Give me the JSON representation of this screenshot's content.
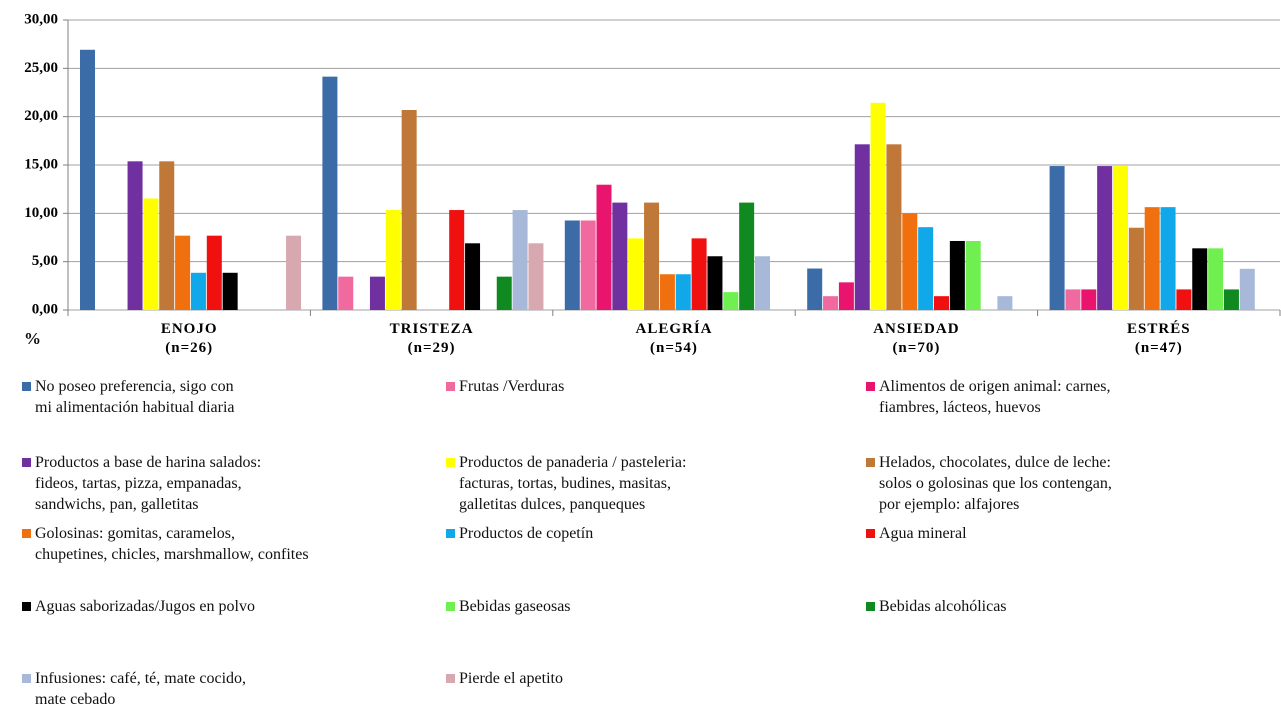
{
  "chart_data": {
    "type": "bar",
    "ylabel": "%",
    "categories": [
      "ENOJO\n(n=26)",
      "TRISTEZA\n(n=29)",
      "ALEGRÍA\n(n=54)",
      "ANSIEDAD\n(n=70)",
      "ESTRÉS\n(n=47)"
    ],
    "ylim": [
      0,
      30
    ],
    "yticks": [
      {
        "value": 0,
        "label": "0,00"
      },
      {
        "value": 5,
        "label": "5,00"
      },
      {
        "value": 10,
        "label": "10,00"
      },
      {
        "value": 15,
        "label": "15,00"
      },
      {
        "value": 20,
        "label": "20,00"
      },
      {
        "value": 25,
        "label": "25,00"
      },
      {
        "value": 30,
        "label": "30,00"
      }
    ],
    "grid": true,
    "series": [
      {
        "name": "No poseo preferencia, sigo con\nmi alimentación habitual diaria",
        "color": "#3c6ca8",
        "values": [
          26.92,
          24.14,
          9.26,
          4.29,
          14.89
        ]
      },
      {
        "name": "Frutas /Verduras",
        "color": "#f06aa0",
        "values": [
          0,
          3.45,
          9.26,
          1.43,
          2.13
        ]
      },
      {
        "name": "Alimentos de origen animal: carnes,\nfiambres, lácteos, huevos",
        "color": "#e8146e",
        "values": [
          0,
          0,
          12.96,
          2.86,
          2.13
        ]
      },
      {
        "name": "Productos a base de harina salados:\nfideos, tartas, pizza, empanadas,\nsandwichs, pan, galletitas",
        "color": "#7030a0",
        "values": [
          15.38,
          3.45,
          11.11,
          17.14,
          14.89
        ]
      },
      {
        "name": "Productos de panaderia / pasteleria:\nfacturas, tortas, budines, masitas,\ngalletitas dulces, panqueques",
        "color": "#ffff00",
        "values": [
          11.54,
          10.34,
          7.41,
          21.43,
          14.89
        ]
      },
      {
        "name": "Helados, chocolates, dulce de leche:\nsolos o golosinas que los contengan,\npor ejemplo: alfajores",
        "color": "#c07838",
        "values": [
          15.38,
          20.69,
          11.11,
          17.14,
          8.51
        ]
      },
      {
        "name": "Golosinas: gomitas, caramelos,\nchupetines, chicles, marshmallow, confites",
        "color": "#f07010",
        "values": [
          7.69,
          0,
          3.7,
          10.0,
          10.64
        ]
      },
      {
        "name": "Productos de copetín",
        "color": "#10a8e8",
        "values": [
          3.85,
          0,
          3.7,
          8.57,
          10.64
        ]
      },
      {
        "name": "Agua mineral",
        "color": "#f01010",
        "values": [
          7.69,
          10.34,
          7.41,
          1.43,
          2.13
        ]
      },
      {
        "name": "Aguas saborizadas/Jugos en polvo",
        "color": "#000000",
        "values": [
          3.85,
          6.9,
          5.56,
          7.14,
          6.38
        ]
      },
      {
        "name": "Bebidas gaseosas",
        "color": "#70f050",
        "values": [
          0,
          0,
          1.85,
          7.14,
          6.38
        ]
      },
      {
        "name": "Bebidas alcohólicas",
        "color": "#108a20",
        "values": [
          0,
          3.45,
          11.11,
          0,
          2.13
        ]
      },
      {
        "name": "Infusiones: café, té, mate cocido,\nmate cebado",
        "color": "#a8b8d8",
        "values": [
          0,
          10.34,
          5.56,
          1.43,
          4.26
        ]
      },
      {
        "name": "Pierde el apetito",
        "color": "#d8a8b0",
        "values": [
          7.69,
          6.9,
          0,
          0,
          0
        ]
      }
    ]
  }
}
